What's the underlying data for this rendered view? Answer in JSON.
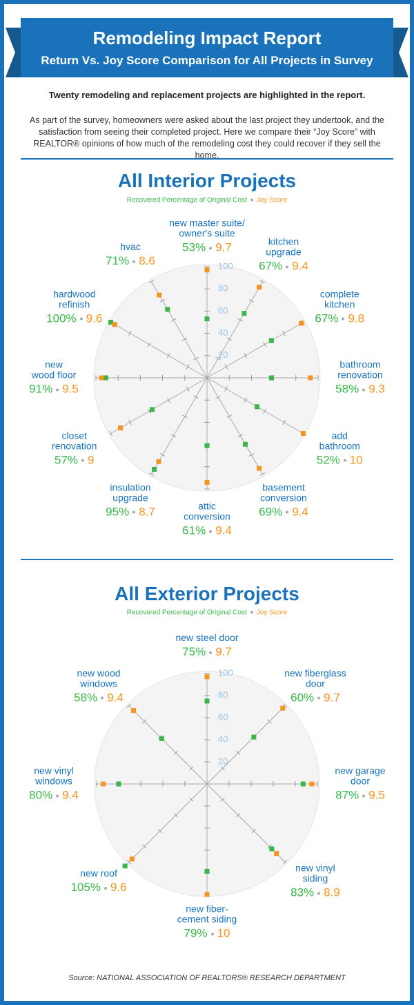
{
  "title": "Remodeling Impact Report",
  "subtitle": "Return Vs. Joy Score Comparison for All Projects in Survey",
  "intro": "Twenty remodeling and replacement projects are highlighted in the report.",
  "description": "As part of the survey, homeowners were asked about the last project they undertook, and the satisfaction from seeing their completed project. Here we compare their “Joy Score” with REALTOR® opinions of how much of the remodeling cost they could recover if they sell the home.",
  "source": "Source: NATIONAL ASSOCIATION OF REALTORS® RESEARCH DEPARTMENT",
  "chart_data": [
    {
      "type": "radar",
      "title": "All Interior Projects",
      "categories": [
        "new master suite/\nowner's suite",
        "kitchen\nupgrade",
        "complete\nkitchen",
        "bathroom\nrenovation",
        "add\nbathroom",
        "basement\nconversion",
        "attic\nconversion",
        "insulation\nupgrade",
        "closet\nrenovation",
        "new\nwood floor",
        "hardwood\nrefinish",
        "hvac"
      ],
      "series": [
        {
          "name": "Recovered Percentage of Original Cost",
          "color": "#39b54a",
          "values": [
            53,
            67,
            67,
            58,
            52,
            69,
            61,
            95,
            57,
            91,
            100,
            71
          ],
          "value_labels": [
            "53%",
            "67%",
            "67%",
            "58%",
            "52%",
            "69%",
            "61%",
            "95%",
            "57%",
            "91%",
            "100%",
            "71%"
          ]
        },
        {
          "name": "Joy Score",
          "color": "#f7941d",
          "axis": "r2",
          "values": [
            9.7,
            9.4,
            9.8,
            9.3,
            10,
            9.4,
            9.4,
            8.7,
            9,
            9.5,
            9.6,
            8.6
          ]
        }
      ],
      "rlim": [
        0,
        100
      ],
      "rticks": [
        20,
        40,
        60,
        80,
        100
      ],
      "r2lim": [
        0,
        10
      ]
    },
    {
      "type": "radar",
      "title": "All Exterior Projects",
      "categories": [
        "new steel door",
        "new fiberglass\ndoor",
        "new garage\ndoor",
        "new vinyl\nsiding",
        "new fiber-\ncement siding",
        "new roof",
        "new vinyl\nwindows",
        "new wood\nwindows"
      ],
      "series": [
        {
          "name": "Recovered Percentage of Original Cost",
          "color": "#39b54a",
          "values": [
            75,
            60,
            87,
            83,
            79,
            105,
            80,
            58
          ],
          "value_labels": [
            "75%",
            "60%",
            "87%",
            "83%",
            "79%",
            "105%",
            "80%",
            "58%"
          ]
        },
        {
          "name": "Joy Score",
          "color": "#f7941d",
          "axis": "r2",
          "values": [
            9.7,
            9.7,
            9.5,
            8.9,
            10,
            9.6,
            9.4,
            9.4
          ]
        }
      ],
      "rlim": [
        0,
        100
      ],
      "rticks": [
        20,
        40,
        60,
        80,
        100
      ],
      "r2lim": [
        0,
        10
      ]
    }
  ]
}
